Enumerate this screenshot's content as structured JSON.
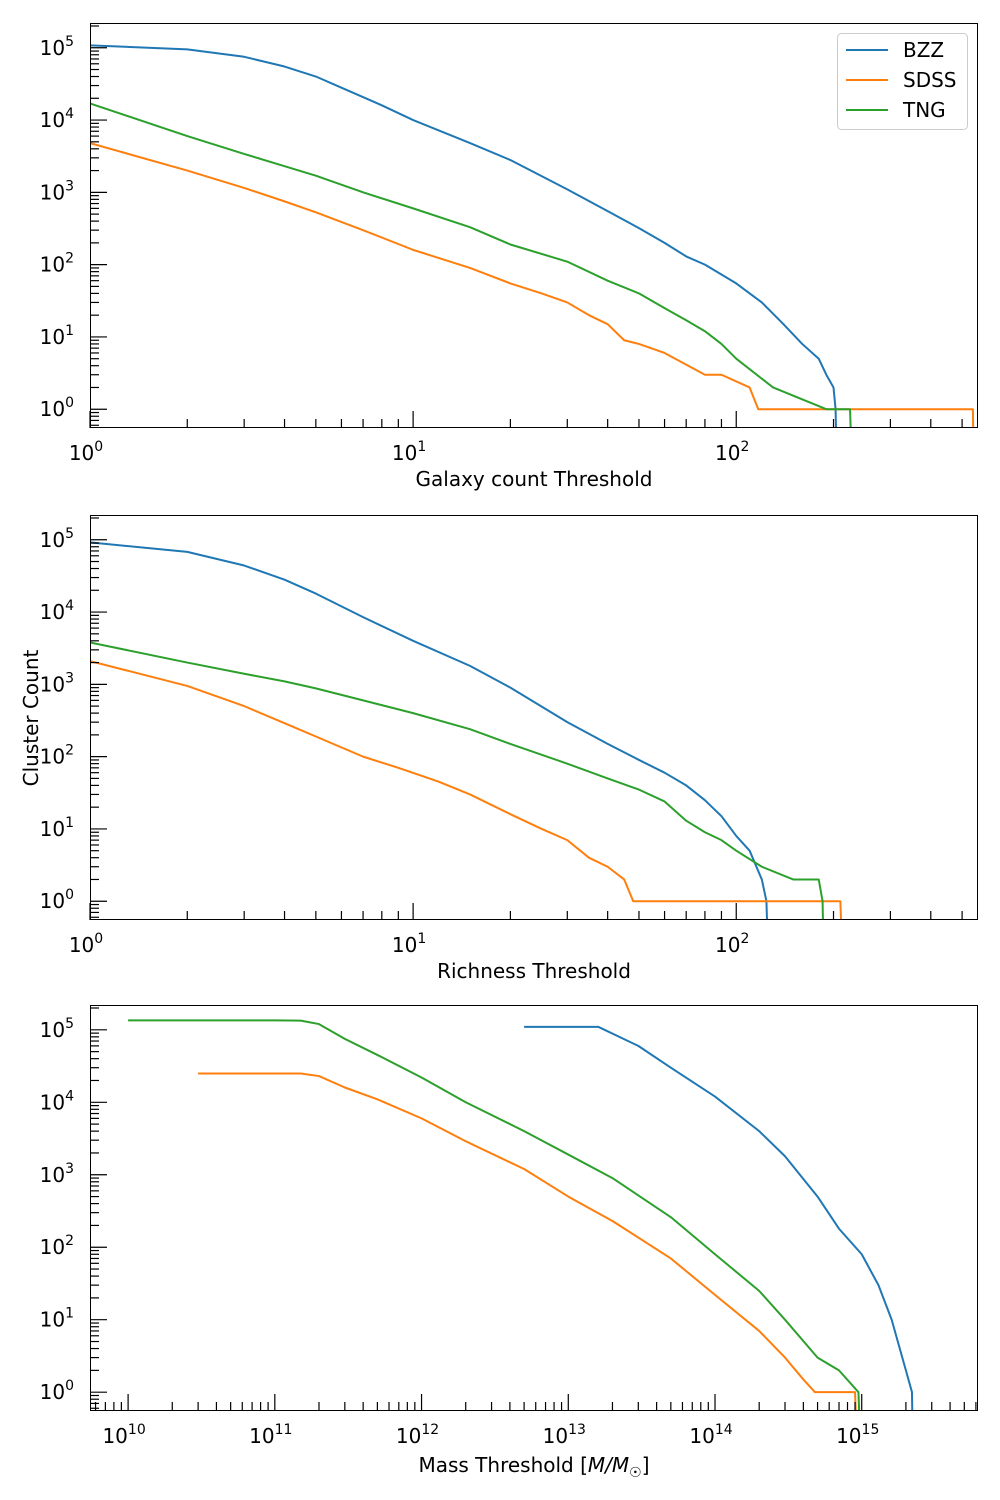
{
  "figure": {
    "shared_ylabel": "Cluster Count"
  },
  "colors": {
    "BZZ": "#1f77b4",
    "SDSS": "#ff7f0e",
    "TNG": "#2ca02c"
  },
  "chart_data": [
    {
      "type": "line",
      "xlabel": "Galaxy count Threshold",
      "ylabel": "Cluster Count",
      "xscale": "log",
      "yscale": "log",
      "xlim": [
        1,
        560
      ],
      "ylim": [
        0.55,
        220000
      ],
      "xticks": [
        1,
        10,
        100
      ],
      "xtick_exponents": [
        "0",
        "1",
        "2"
      ],
      "yticks": [
        1,
        10,
        100,
        1000,
        10000,
        100000
      ],
      "ytick_exponents": [
        "0",
        "1",
        "2",
        "3",
        "4",
        "5"
      ],
      "grid": false,
      "legend": {
        "placement": "top-right",
        "entries": [
          "BZZ",
          "SDSS",
          "TNG"
        ]
      },
      "series": [
        {
          "name": "BZZ",
          "color": "#1f77b4",
          "x": [
            1,
            2,
            3,
            4,
            5,
            6,
            8,
            10,
            15,
            20,
            30,
            40,
            50,
            60,
            70,
            80,
            100,
            120,
            140,
            160,
            180,
            190,
            200,
            203,
            203.5
          ],
          "y": [
            108000,
            95000,
            75000,
            55000,
            40000,
            28000,
            16000,
            10000,
            4800,
            2800,
            1100,
            550,
            320,
            200,
            130,
            100,
            55,
            30,
            15,
            8,
            5,
            3,
            2,
            1,
            0.55
          ]
        },
        {
          "name": "SDSS",
          "color": "#ff7f0e",
          "x": [
            1,
            2,
            3,
            4,
            5,
            7,
            10,
            15,
            20,
            25,
            30,
            35,
            40,
            45,
            50,
            60,
            80,
            90,
            110,
            117,
            118,
            540,
            541
          ],
          "y": [
            4800,
            2000,
            1150,
            750,
            530,
            300,
            160,
            90,
            55,
            40,
            30,
            20,
            15,
            9,
            8,
            6,
            3,
            3,
            2,
            1,
            1,
            1,
            0.55
          ]
        },
        {
          "name": "TNG",
          "color": "#2ca02c",
          "x": [
            1,
            2,
            3,
            4,
            5,
            7,
            10,
            15,
            20,
            30,
            40,
            50,
            60,
            70,
            80,
            90,
            100,
            130,
            190,
            225,
            226
          ],
          "y": [
            17000,
            6000,
            3400,
            2300,
            1700,
            1000,
            600,
            330,
            190,
            110,
            60,
            40,
            25,
            17,
            12,
            8,
            5,
            2,
            1,
            1,
            0.55
          ]
        }
      ]
    },
    {
      "type": "line",
      "xlabel": "Richness Threshold",
      "ylabel": "Cluster Count",
      "xscale": "log",
      "yscale": "log",
      "xlim": [
        1,
        560
      ],
      "ylim": [
        0.55,
        220000
      ],
      "xticks": [
        1,
        10,
        100
      ],
      "xtick_exponents": [
        "0",
        "1",
        "2"
      ],
      "yticks": [
        1,
        10,
        100,
        1000,
        10000,
        100000
      ],
      "ytick_exponents": [
        "0",
        "1",
        "2",
        "3",
        "4",
        "5"
      ],
      "grid": false,
      "series": [
        {
          "name": "BZZ",
          "color": "#1f77b4",
          "x": [
            1,
            2,
            3,
            4,
            5,
            7,
            10,
            15,
            20,
            30,
            40,
            50,
            60,
            70,
            80,
            90,
            100,
            110,
            120,
            124,
            124.5
          ],
          "y": [
            92000,
            68000,
            44000,
            28000,
            18000,
            8500,
            4000,
            1800,
            900,
            300,
            150,
            90,
            60,
            40,
            25,
            15,
            8,
            5,
            2,
            1,
            0.55
          ]
        },
        {
          "name": "SDSS",
          "color": "#ff7f0e",
          "x": [
            1,
            2,
            3,
            4,
            5,
            7,
            9,
            12,
            15,
            20,
            25,
            30,
            35,
            40,
            45,
            48,
            49,
            210,
            211
          ],
          "y": [
            2100,
            950,
            500,
            290,
            190,
            100,
            70,
            45,
            30,
            16,
            10,
            7,
            4,
            3,
            2,
            1,
            1,
            1,
            0.55
          ]
        },
        {
          "name": "TNG",
          "color": "#2ca02c",
          "x": [
            1,
            2,
            3,
            4,
            5,
            7,
            10,
            15,
            20,
            30,
            40,
            50,
            60,
            70,
            80,
            90,
            100,
            120,
            150,
            180,
            185,
            185.5
          ],
          "y": [
            3800,
            2000,
            1400,
            1100,
            880,
            600,
            400,
            240,
            150,
            80,
            50,
            35,
            24,
            13,
            9,
            7,
            5,
            3,
            2,
            2,
            1,
            0.55
          ]
        }
      ]
    },
    {
      "type": "line",
      "xlabel": "Mass Threshold [M/M☉]",
      "xlabel_main": "Mass Threshold [",
      "xlabel_math": "M/M",
      "xlabel_sun": "☉",
      "xlabel_end": "]",
      "ylabel": "Cluster Count",
      "xscale": "log",
      "yscale": "log",
      "xlim": [
        5500000000.0,
        6200000000000000.0
      ],
      "ylim": [
        0.55,
        220000
      ],
      "xticks": [
        10000000000.0,
        100000000000.0,
        1000000000000.0,
        10000000000000.0,
        100000000000000.0,
        1000000000000000.0
      ],
      "xtick_exponents": [
        "10",
        "11",
        "12",
        "13",
        "14",
        "15"
      ],
      "yticks": [
        1,
        10,
        100,
        1000,
        10000,
        100000
      ],
      "ytick_exponents": [
        "0",
        "1",
        "2",
        "3",
        "4",
        "5"
      ],
      "grid": false,
      "series": [
        {
          "name": "BZZ",
          "color": "#1f77b4",
          "x": [
            5000000000000.0,
            16000000000000.0,
            30000000000000.0,
            50000000000000.0,
            100000000000000.0,
            200000000000000.0,
            300000000000000.0,
            500000000000000.0,
            700000000000000.0,
            1000000000000000.0,
            1300000000000000.0,
            1600000000000000.0,
            2000000000000000.0,
            2200000000000000.0,
            2210000000000000.0
          ],
          "y": [
            110000,
            110000,
            60000,
            30000,
            12000,
            4000,
            1800,
            500,
            180,
            80,
            30,
            10,
            2,
            1,
            0.55
          ]
        },
        {
          "name": "SDSS",
          "color": "#ff7f0e",
          "x": [
            30000000000.0,
            100000000000.0,
            150000000000.0,
            200000000000.0,
            300000000000.0,
            500000000000.0,
            1000000000000.0,
            2000000000000.0,
            5000000000000.0,
            10000000000000.0,
            20000000000000.0,
            50000000000000.0,
            100000000000000.0,
            200000000000000.0,
            300000000000000.0,
            400000000000000.0,
            480000000000000.0,
            500000000000000.0,
            900000000000000.0,
            910000000000000.0
          ],
          "y": [
            25000,
            25000,
            25000,
            23000,
            16000,
            11000,
            6000,
            2900,
            1200,
            500,
            230,
            70,
            22,
            7,
            3,
            1.5,
            1,
            1,
            1,
            0.55
          ]
        },
        {
          "name": "TNG",
          "color": "#2ca02c",
          "x": [
            10000000000.0,
            100000000000.0,
            150000000000.0,
            200000000000.0,
            300000000000.0,
            500000000000.0,
            1000000000000.0,
            2000000000000.0,
            5000000000000.0,
            10000000000000.0,
            20000000000000.0,
            50000000000000.0,
            100000000000000.0,
            200000000000000.0,
            300000000000000.0,
            500000000000000.0,
            700000000000000.0,
            950000000000000.0,
            960000000000000.0
          ],
          "y": [
            135000,
            135000,
            134000,
            120000,
            75000,
            45000,
            22000,
            10000,
            4000,
            1900,
            900,
            260,
            80,
            25,
            10,
            3,
            2,
            1,
            0.55
          ]
        }
      ]
    }
  ]
}
